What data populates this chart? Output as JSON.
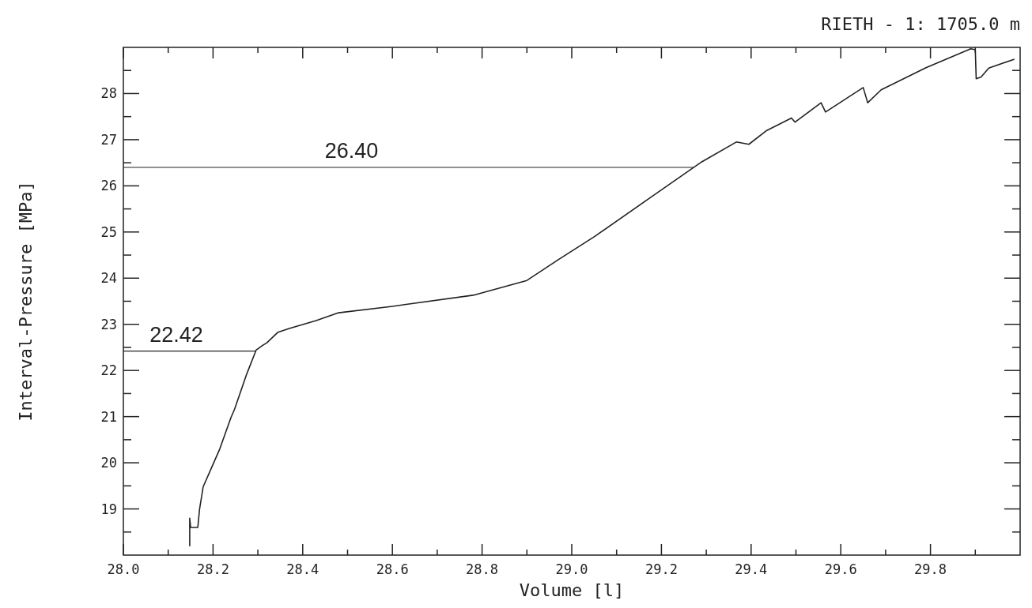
{
  "chart_data": {
    "type": "line",
    "title": "RIETH - 1: 1705.0 m",
    "xlabel": "Volume [l]",
    "ylabel": "Interval-Pressure [MPa]",
    "xlim": [
      28,
      30
    ],
    "ylim": [
      18,
      29
    ],
    "xticks": [
      {
        "value": 28,
        "label": "28.0"
      },
      {
        "value": 28.1,
        "label": null
      },
      28.2,
      {
        "value": 28.3,
        "label": null
      },
      28.4,
      {
        "value": 28.5,
        "label": null
      },
      28.6,
      {
        "value": 28.7,
        "label": null
      },
      28.8,
      {
        "value": 28.9,
        "label": null
      },
      {
        "value": 29,
        "label": "29.0"
      },
      {
        "value": 29.1,
        "label": null
      },
      29.2,
      {
        "value": 29.3,
        "label": null
      },
      29.4,
      {
        "value": 29.5,
        "label": null
      },
      29.6,
      {
        "value": 29.7,
        "label": null
      },
      29.8,
      {
        "value": 29.9,
        "label": null
      }
    ],
    "yticks": [
      {
        "value": 18.5,
        "label": null
      },
      19,
      {
        "value": 19.5,
        "label": null
      },
      20,
      {
        "value": 20.5,
        "label": null
      },
      21,
      {
        "value": 21.5,
        "label": null
      },
      22,
      {
        "value": 22.5,
        "label": null
      },
      23,
      {
        "value": 23.5,
        "label": null
      },
      24,
      {
        "value": 24.5,
        "label": null
      },
      25,
      {
        "value": 25.5,
        "label": null
      },
      26,
      {
        "value": 26.5,
        "label": null
      },
      27,
      {
        "value": 27.5,
        "label": null
      },
      28,
      {
        "value": 28.5,
        "label": null
      }
    ],
    "grid": false,
    "marker": "none",
    "line_style": "solid",
    "ref_lines": [
      {
        "axis": "y",
        "value": 26.4,
        "label": "26.40"
      },
      {
        "axis": "y",
        "value": 22.42,
        "label": "22.42"
      }
    ],
    "series": [
      {
        "color": "#222222",
        "x": [
          28.148,
          28.148,
          28.15,
          28.166,
          28.17,
          28.178,
          28.197,
          28.215,
          28.24,
          28.248,
          28.275,
          28.296,
          28.31,
          28.32,
          28.345,
          28.37,
          28.43,
          28.48,
          28.6,
          28.78,
          28.9,
          28.97,
          29.052,
          29.173,
          29.29,
          29.367,
          29.395,
          29.435,
          29.49,
          29.498,
          29.556,
          29.566,
          29.65,
          29.66,
          29.69,
          29.79,
          29.89,
          29.9,
          29.902,
          29.913,
          29.93,
          29.986
        ],
        "values": [
          18.2,
          18.8,
          18.6,
          18.6,
          19.0,
          19.48,
          19.9,
          20.3,
          20.98,
          21.16,
          21.92,
          22.44,
          22.54,
          22.6,
          22.83,
          22.91,
          23.08,
          23.25,
          23.39,
          23.63,
          23.95,
          24.4,
          24.91,
          25.73,
          26.52,
          26.95,
          26.9,
          27.2,
          27.47,
          27.38,
          27.8,
          27.6,
          28.13,
          27.8,
          28.08,
          28.56,
          28.97,
          28.95,
          28.32,
          28.36,
          28.55,
          28.74
        ]
      }
    ]
  }
}
